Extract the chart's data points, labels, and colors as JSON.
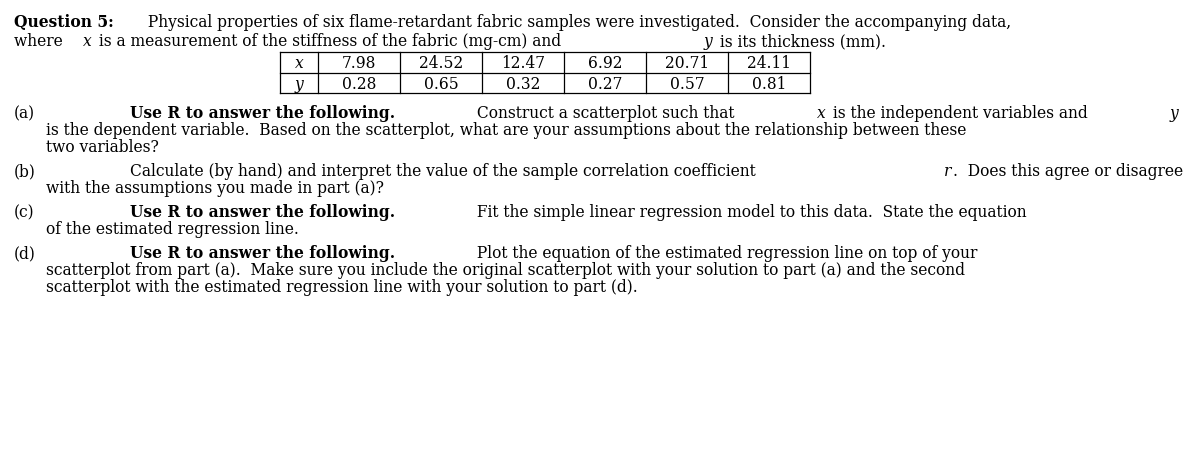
{
  "bg_color": "#ffffff",
  "text_color": "#000000",
  "font_size": 11.2,
  "table_x_values": [
    "7.98",
    "24.52",
    "12.47",
    "6.92",
    "20.71",
    "24.11"
  ],
  "table_y_values": [
    "0.28",
    "0.65",
    "0.32",
    "0.27",
    "0.57",
    "0.81"
  ]
}
